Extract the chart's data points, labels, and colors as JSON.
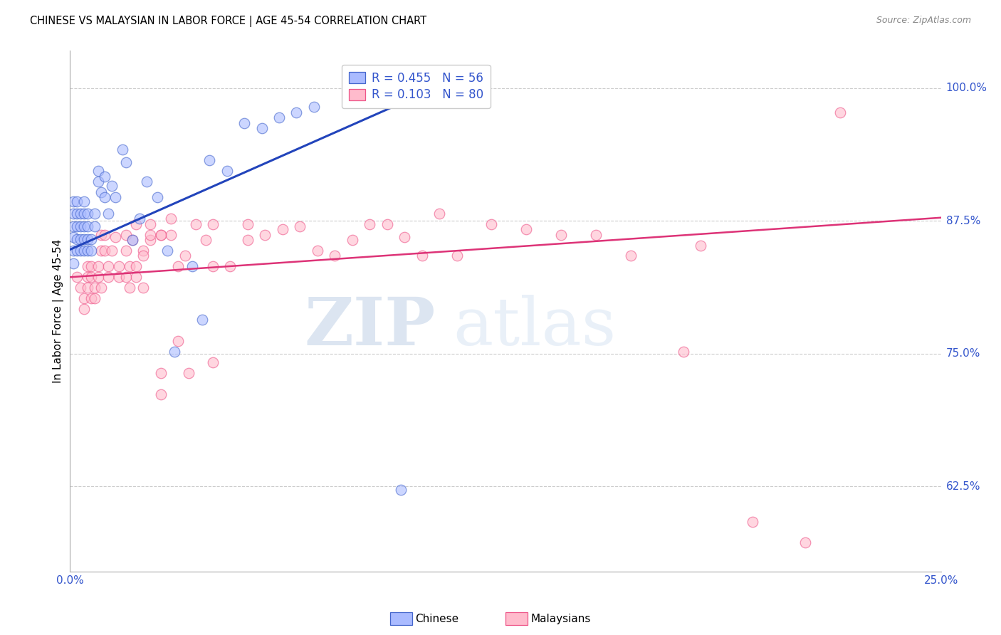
{
  "title": "CHINESE VS MALAYSIAN IN LABOR FORCE | AGE 45-54 CORRELATION CHART",
  "source": "Source: ZipAtlas.com",
  "ylabel": "In Labor Force | Age 45-54",
  "ytick_labels": [
    "100.0%",
    "87.5%",
    "75.0%",
    "62.5%"
  ],
  "ytick_values": [
    1.0,
    0.875,
    0.75,
    0.625
  ],
  "xlim": [
    0.0,
    0.25
  ],
  "ylim": [
    0.545,
    1.035
  ],
  "legend_r_chinese": "R = 0.455",
  "legend_n_chinese": "N = 56",
  "legend_r_malaysian": "R = 0.103",
  "legend_n_malaysian": "N = 80",
  "watermark_zip": "ZIP",
  "watermark_atlas": "atlas",
  "chinese_fill": "#aabbff",
  "chinese_edge": "#4466cc",
  "malaysian_fill": "#ffbbcc",
  "malaysian_edge": "#ee5588",
  "blue_line_color": "#2244bb",
  "pink_line_color": "#dd3377",
  "label_color": "#3355cc",
  "chinese_scatter": [
    [
      0.001,
      0.86
    ],
    [
      0.001,
      0.87
    ],
    [
      0.001,
      0.882
    ],
    [
      0.001,
      0.893
    ],
    [
      0.001,
      0.835
    ],
    [
      0.001,
      0.847
    ],
    [
      0.002,
      0.858
    ],
    [
      0.002,
      0.847
    ],
    [
      0.002,
      0.87
    ],
    [
      0.002,
      0.882
    ],
    [
      0.002,
      0.893
    ],
    [
      0.003,
      0.858
    ],
    [
      0.003,
      0.847
    ],
    [
      0.003,
      0.87
    ],
    [
      0.003,
      0.882
    ],
    [
      0.004,
      0.858
    ],
    [
      0.004,
      0.847
    ],
    [
      0.004,
      0.87
    ],
    [
      0.004,
      0.882
    ],
    [
      0.004,
      0.893
    ],
    [
      0.005,
      0.858
    ],
    [
      0.005,
      0.847
    ],
    [
      0.005,
      0.87
    ],
    [
      0.005,
      0.882
    ],
    [
      0.006,
      0.858
    ],
    [
      0.006,
      0.847
    ],
    [
      0.007,
      0.87
    ],
    [
      0.007,
      0.882
    ],
    [
      0.008,
      0.922
    ],
    [
      0.008,
      0.912
    ],
    [
      0.009,
      0.902
    ],
    [
      0.01,
      0.917
    ],
    [
      0.01,
      0.897
    ],
    [
      0.011,
      0.882
    ],
    [
      0.012,
      0.908
    ],
    [
      0.013,
      0.897
    ],
    [
      0.015,
      0.942
    ],
    [
      0.016,
      0.93
    ],
    [
      0.018,
      0.857
    ],
    [
      0.02,
      0.877
    ],
    [
      0.022,
      0.912
    ],
    [
      0.025,
      0.897
    ],
    [
      0.028,
      0.847
    ],
    [
      0.03,
      0.752
    ],
    [
      0.035,
      0.832
    ],
    [
      0.038,
      0.782
    ],
    [
      0.04,
      0.932
    ],
    [
      0.045,
      0.922
    ],
    [
      0.05,
      0.967
    ],
    [
      0.055,
      0.962
    ],
    [
      0.06,
      0.972
    ],
    [
      0.065,
      0.977
    ],
    [
      0.07,
      0.982
    ],
    [
      0.095,
      0.622
    ],
    [
      0.1,
      0.998
    ],
    [
      0.105,
      1.002
    ]
  ],
  "malaysian_scatter": [
    [
      0.002,
      0.822
    ],
    [
      0.003,
      0.812
    ],
    [
      0.004,
      0.802
    ],
    [
      0.004,
      0.792
    ],
    [
      0.005,
      0.832
    ],
    [
      0.005,
      0.822
    ],
    [
      0.005,
      0.812
    ],
    [
      0.006,
      0.802
    ],
    [
      0.006,
      0.832
    ],
    [
      0.006,
      0.822
    ],
    [
      0.007,
      0.812
    ],
    [
      0.007,
      0.802
    ],
    [
      0.008,
      0.832
    ],
    [
      0.008,
      0.822
    ],
    [
      0.009,
      0.862
    ],
    [
      0.009,
      0.847
    ],
    [
      0.009,
      0.812
    ],
    [
      0.01,
      0.847
    ],
    [
      0.01,
      0.862
    ],
    [
      0.011,
      0.832
    ],
    [
      0.011,
      0.822
    ],
    [
      0.012,
      0.847
    ],
    [
      0.013,
      0.86
    ],
    [
      0.014,
      0.832
    ],
    [
      0.014,
      0.822
    ],
    [
      0.016,
      0.862
    ],
    [
      0.016,
      0.847
    ],
    [
      0.016,
      0.822
    ],
    [
      0.017,
      0.832
    ],
    [
      0.017,
      0.812
    ],
    [
      0.018,
      0.857
    ],
    [
      0.019,
      0.872
    ],
    [
      0.019,
      0.832
    ],
    [
      0.019,
      0.822
    ],
    [
      0.021,
      0.847
    ],
    [
      0.021,
      0.812
    ],
    [
      0.021,
      0.842
    ],
    [
      0.023,
      0.857
    ],
    [
      0.023,
      0.872
    ],
    [
      0.023,
      0.862
    ],
    [
      0.026,
      0.862
    ],
    [
      0.026,
      0.862
    ],
    [
      0.026,
      0.732
    ],
    [
      0.026,
      0.712
    ],
    [
      0.029,
      0.877
    ],
    [
      0.029,
      0.862
    ],
    [
      0.031,
      0.832
    ],
    [
      0.031,
      0.762
    ],
    [
      0.033,
      0.842
    ],
    [
      0.034,
      0.732
    ],
    [
      0.036,
      0.872
    ],
    [
      0.039,
      0.857
    ],
    [
      0.041,
      0.872
    ],
    [
      0.041,
      0.832
    ],
    [
      0.041,
      0.742
    ],
    [
      0.046,
      0.832
    ],
    [
      0.051,
      0.857
    ],
    [
      0.051,
      0.872
    ],
    [
      0.056,
      0.862
    ],
    [
      0.061,
      0.867
    ],
    [
      0.066,
      0.87
    ],
    [
      0.071,
      0.847
    ],
    [
      0.076,
      0.842
    ],
    [
      0.081,
      0.857
    ],
    [
      0.086,
      0.872
    ],
    [
      0.091,
      0.872
    ],
    [
      0.096,
      0.86
    ],
    [
      0.101,
      0.842
    ],
    [
      0.106,
      0.882
    ],
    [
      0.111,
      0.842
    ],
    [
      0.121,
      0.872
    ],
    [
      0.131,
      0.867
    ],
    [
      0.141,
      0.862
    ],
    [
      0.151,
      0.862
    ],
    [
      0.161,
      0.842
    ],
    [
      0.176,
      0.752
    ],
    [
      0.181,
      0.852
    ],
    [
      0.196,
      0.592
    ],
    [
      0.211,
      0.572
    ],
    [
      0.221,
      0.977
    ]
  ],
  "blue_trendline_x": [
    0.0,
    0.107
  ],
  "blue_trendline_y": [
    0.848,
    1.003
  ],
  "pink_trendline_x": [
    0.0,
    0.25
  ],
  "pink_trendline_y": [
    0.822,
    0.878
  ]
}
